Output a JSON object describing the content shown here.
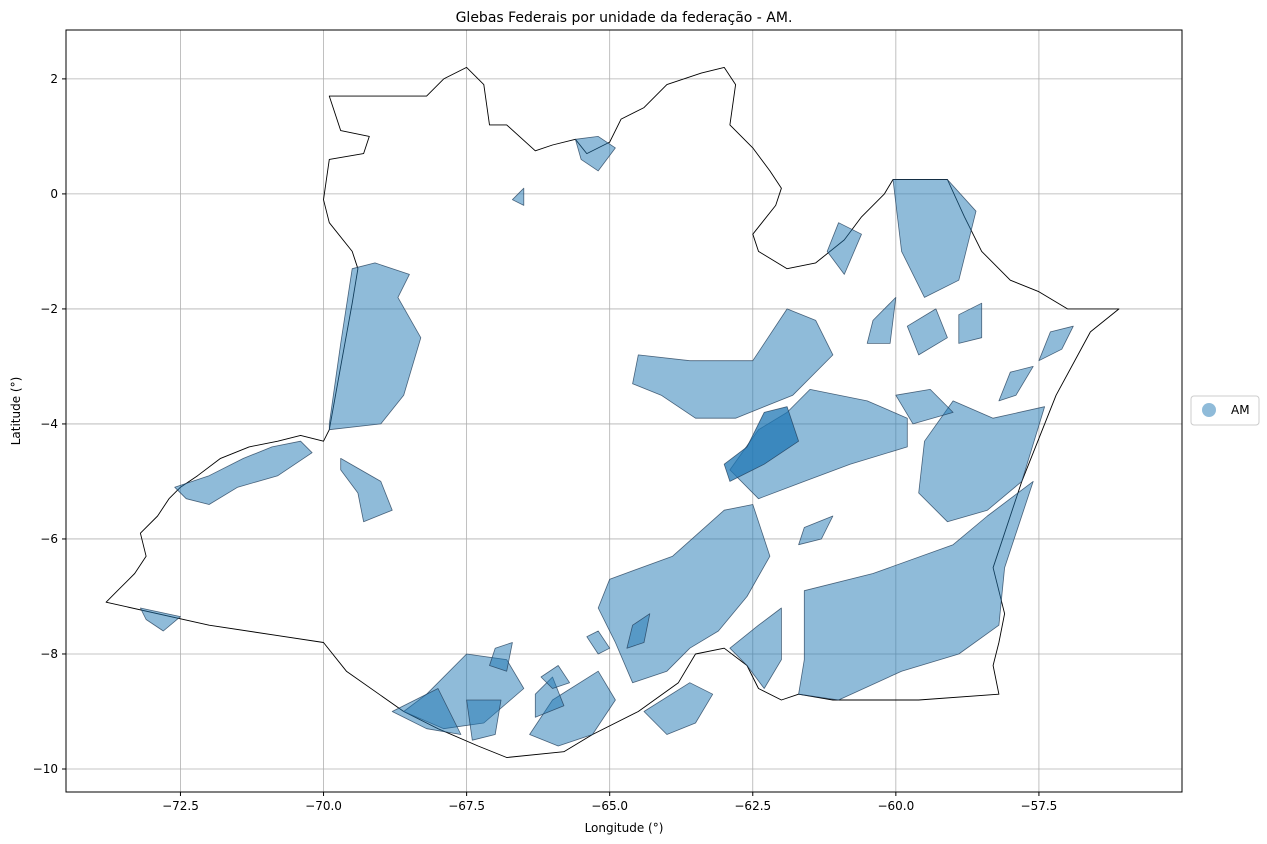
{
  "title": "Glebas Federais por unidade da federação - AM.",
  "xlabel": "Longitude (°)",
  "ylabel": "Latitude (°)",
  "chart_data": {
    "type": "map",
    "title": "Glebas Federais por unidade da federação - AM.",
    "xlabel": "Longitude (°)",
    "ylabel": "Latitude (°)",
    "xlim": [
      -74.5,
      -55.0
    ],
    "ylim": [
      -10.4,
      2.85
    ],
    "xticks": [
      -72.5,
      -70.0,
      -67.5,
      -65.0,
      -62.5,
      -60.0,
      -57.5
    ],
    "yticks": [
      2,
      0,
      -2,
      -4,
      -6,
      -8,
      -10
    ],
    "xtick_labels": [
      "−72.5",
      "−70.0",
      "−67.5",
      "−65.0",
      "−62.5",
      "−60.0",
      "−57.5"
    ],
    "ytick_labels": [
      "2",
      "0",
      "−2",
      "−4",
      "−6",
      "−8",
      "−10"
    ],
    "grid": true,
    "legend": {
      "position": "right",
      "entries": [
        {
          "label": "AM",
          "color": "#1f77b4",
          "alpha": 0.5
        }
      ]
    },
    "fill_color": "#1f77b4",
    "fill_alpha": 0.5,
    "state_outline": [
      [
        -73.8,
        -7.1
      ],
      [
        -73.6,
        -6.9
      ],
      [
        -73.3,
        -6.6
      ],
      [
        -73.1,
        -6.3
      ],
      [
        -73.2,
        -5.9
      ],
      [
        -72.9,
        -5.6
      ],
      [
        -72.7,
        -5.3
      ],
      [
        -72.5,
        -5.1
      ],
      [
        -72.2,
        -4.9
      ],
      [
        -71.8,
        -4.6
      ],
      [
        -71.3,
        -4.4
      ],
      [
        -70.8,
        -4.3
      ],
      [
        -70.4,
        -4.2
      ],
      [
        -70.0,
        -4.3
      ],
      [
        -69.9,
        -4.1
      ],
      [
        -69.7,
        -3.0
      ],
      [
        -69.5,
        -1.9
      ],
      [
        -69.4,
        -1.3
      ],
      [
        -69.5,
        -1.0
      ],
      [
        -69.9,
        -0.5
      ],
      [
        -70.0,
        -0.1
      ],
      [
        -69.9,
        0.6
      ],
      [
        -69.3,
        0.7
      ],
      [
        -69.2,
        1.0
      ],
      [
        -69.7,
        1.1
      ],
      [
        -69.9,
        1.7
      ],
      [
        -68.2,
        1.7
      ],
      [
        -67.9,
        2.0
      ],
      [
        -67.5,
        2.2
      ],
      [
        -67.2,
        1.9
      ],
      [
        -67.1,
        1.2
      ],
      [
        -66.8,
        1.2
      ],
      [
        -66.3,
        0.75
      ],
      [
        -66.0,
        0.85
      ],
      [
        -65.6,
        0.95
      ],
      [
        -65.4,
        0.7
      ],
      [
        -65.0,
        0.9
      ],
      [
        -64.8,
        1.3
      ],
      [
        -64.4,
        1.5
      ],
      [
        -64.0,
        1.9
      ],
      [
        -63.4,
        2.1
      ],
      [
        -63.0,
        2.2
      ],
      [
        -62.8,
        1.9
      ],
      [
        -62.9,
        1.2
      ],
      [
        -62.5,
        0.8
      ],
      [
        -62.2,
        0.4
      ],
      [
        -62.0,
        0.1
      ],
      [
        -62.1,
        -0.2
      ],
      [
        -62.5,
        -0.7
      ],
      [
        -62.4,
        -1.0
      ],
      [
        -61.9,
        -1.3
      ],
      [
        -61.4,
        -1.2
      ],
      [
        -60.9,
        -0.8
      ],
      [
        -60.6,
        -0.4
      ],
      [
        -60.2,
        0.0
      ],
      [
        -60.05,
        0.25
      ],
      [
        -59.1,
        0.25
      ],
      [
        -58.8,
        -0.4
      ],
      [
        -58.5,
        -1.0
      ],
      [
        -58.0,
        -1.5
      ],
      [
        -57.5,
        -1.7
      ],
      [
        -57.0,
        -2.0
      ],
      [
        -56.1,
        -2.0
      ],
      [
        -56.6,
        -2.4
      ],
      [
        -57.2,
        -3.5
      ],
      [
        -57.8,
        -5.0
      ],
      [
        -58.3,
        -6.5
      ],
      [
        -58.1,
        -7.3
      ],
      [
        -58.2,
        -7.8
      ],
      [
        -58.3,
        -8.2
      ],
      [
        -58.2,
        -8.7
      ],
      [
        -59.6,
        -8.8
      ],
      [
        -61.1,
        -8.8
      ],
      [
        -61.7,
        -8.7
      ],
      [
        -62.0,
        -8.8
      ],
      [
        -62.4,
        -8.6
      ],
      [
        -62.6,
        -8.2
      ],
      [
        -63.0,
        -7.9
      ],
      [
        -63.5,
        -8.0
      ],
      [
        -63.8,
        -8.5
      ],
      [
        -64.5,
        -9.0
      ],
      [
        -65.3,
        -9.4
      ],
      [
        -65.8,
        -9.7
      ],
      [
        -66.8,
        -9.8
      ],
      [
        -67.3,
        -9.6
      ],
      [
        -68.0,
        -9.3
      ],
      [
        -68.6,
        -9.0
      ],
      [
        -69.6,
        -8.3
      ],
      [
        -70.0,
        -7.8
      ],
      [
        -72.0,
        -7.5
      ],
      [
        -73.8,
        -7.1
      ]
    ],
    "glebas": [
      [
        [
          -69.9,
          -4.1
        ],
        [
          -69.0,
          -4.0
        ],
        [
          -68.6,
          -3.5
        ],
        [
          -68.3,
          -2.5
        ],
        [
          -68.7,
          -1.8
        ],
        [
          -68.5,
          -1.4
        ],
        [
          -69.1,
          -1.2
        ],
        [
          -69.5,
          -1.3
        ],
        [
          -69.7,
          -2.6
        ],
        [
          -69.9,
          -4.0
        ]
      ],
      [
        [
          -69.7,
          -4.6
        ],
        [
          -69.0,
          -5.0
        ],
        [
          -68.8,
          -5.5
        ],
        [
          -69.3,
          -5.7
        ],
        [
          -69.4,
          -5.2
        ],
        [
          -69.7,
          -4.8
        ]
      ],
      [
        [
          -72.6,
          -5.1
        ],
        [
          -72.0,
          -4.9
        ],
        [
          -71.4,
          -4.6
        ],
        [
          -70.9,
          -4.4
        ],
        [
          -70.4,
          -4.3
        ],
        [
          -70.2,
          -4.5
        ],
        [
          -70.8,
          -4.9
        ],
        [
          -71.5,
          -5.1
        ],
        [
          -72.0,
          -5.4
        ],
        [
          -72.4,
          -5.3
        ]
      ],
      [
        [
          -73.2,
          -7.2
        ],
        [
          -72.5,
          -7.35
        ],
        [
          -72.8,
          -7.6
        ],
        [
          -73.1,
          -7.4
        ]
      ],
      [
        [
          -65.6,
          0.95
        ],
        [
          -65.2,
          1.0
        ],
        [
          -64.9,
          0.8
        ],
        [
          -65.2,
          0.4
        ],
        [
          -65.5,
          0.6
        ]
      ],
      [
        [
          -66.7,
          -0.1
        ],
        [
          -66.5,
          -0.2
        ],
        [
          -66.5,
          0.1
        ]
      ],
      [
        [
          -59.1,
          0.25
        ],
        [
          -58.6,
          -0.3
        ],
        [
          -58.9,
          -1.5
        ],
        [
          -59.5,
          -1.8
        ],
        [
          -59.9,
          -1.0
        ],
        [
          -60.05,
          0.25
        ]
      ],
      [
        [
          -61.0,
          -0.5
        ],
        [
          -60.6,
          -0.7
        ],
        [
          -60.9,
          -1.4
        ],
        [
          -61.2,
          -1.0
        ]
      ],
      [
        [
          -59.8,
          -2.3
        ],
        [
          -59.3,
          -2.0
        ],
        [
          -59.1,
          -2.5
        ],
        [
          -59.6,
          -2.8
        ]
      ],
      [
        [
          -60.4,
          -2.2
        ],
        [
          -60.0,
          -1.8
        ],
        [
          -60.1,
          -2.6
        ],
        [
          -60.5,
          -2.6
        ]
      ],
      [
        [
          -64.5,
          -2.8
        ],
        [
          -63.6,
          -2.9
        ],
        [
          -62.5,
          -2.9
        ],
        [
          -61.9,
          -2.0
        ],
        [
          -61.4,
          -2.2
        ],
        [
          -61.1,
          -2.8
        ],
        [
          -61.8,
          -3.5
        ],
        [
          -62.8,
          -3.9
        ],
        [
          -63.5,
          -3.9
        ],
        [
          -64.1,
          -3.5
        ],
        [
          -64.6,
          -3.3
        ]
      ],
      [
        [
          -62.9,
          -4.8
        ],
        [
          -62.4,
          -4.1
        ],
        [
          -61.9,
          -3.8
        ],
        [
          -61.5,
          -3.4
        ],
        [
          -60.5,
          -3.6
        ],
        [
          -59.8,
          -3.9
        ],
        [
          -59.8,
          -4.4
        ],
        [
          -60.8,
          -4.7
        ],
        [
          -61.6,
          -5.0
        ],
        [
          -62.4,
          -5.3
        ]
      ],
      [
        [
          -59.5,
          -4.3
        ],
        [
          -59.0,
          -3.6
        ],
        [
          -58.3,
          -3.9
        ],
        [
          -57.4,
          -3.7
        ],
        [
          -57.8,
          -5.0
        ],
        [
          -58.4,
          -5.5
        ],
        [
          -59.1,
          -5.7
        ],
        [
          -59.6,
          -5.2
        ]
      ],
      [
        [
          -58.9,
          -2.1
        ],
        [
          -58.5,
          -1.9
        ],
        [
          -58.5,
          -2.5
        ],
        [
          -58.9,
          -2.6
        ]
      ],
      [
        [
          -57.3,
          -2.4
        ],
        [
          -56.9,
          -2.3
        ],
        [
          -57.1,
          -2.7
        ],
        [
          -57.5,
          -2.9
        ]
      ],
      [
        [
          -58.0,
          -3.1
        ],
        [
          -57.6,
          -3.0
        ],
        [
          -57.9,
          -3.5
        ],
        [
          -58.2,
          -3.6
        ]
      ],
      [
        [
          -60.0,
          -3.5
        ],
        [
          -59.4,
          -3.4
        ],
        [
          -59.0,
          -3.8
        ],
        [
          -59.7,
          -4.0
        ]
      ],
      [
        [
          -65.0,
          -6.7
        ],
        [
          -63.9,
          -6.3
        ],
        [
          -63.0,
          -5.5
        ],
        [
          -62.5,
          -5.4
        ],
        [
          -62.2,
          -6.3
        ],
        [
          -62.6,
          -7.0
        ],
        [
          -63.1,
          -7.6
        ],
        [
          -63.6,
          -7.9
        ],
        [
          -64.0,
          -8.3
        ],
        [
          -64.6,
          -8.5
        ],
        [
          -64.9,
          -7.8
        ],
        [
          -65.2,
          -7.2
        ]
      ],
      [
        [
          -61.6,
          -6.9
        ],
        [
          -60.4,
          -6.6
        ],
        [
          -59.0,
          -6.1
        ],
        [
          -58.4,
          -5.6
        ],
        [
          -57.6,
          -5.0
        ],
        [
          -58.1,
          -6.5
        ],
        [
          -58.2,
          -7.5
        ],
        [
          -58.9,
          -8.0
        ],
        [
          -59.9,
          -8.3
        ],
        [
          -61.0,
          -8.8
        ],
        [
          -61.7,
          -8.7
        ],
        [
          -61.6,
          -8.1
        ]
      ],
      [
        [
          -62.9,
          -7.9
        ],
        [
          -62.4,
          -7.5
        ],
        [
          -62.0,
          -7.2
        ],
        [
          -62.0,
          -8.1
        ],
        [
          -62.3,
          -8.6
        ],
        [
          -62.6,
          -8.2
        ]
      ],
      [
        [
          -64.4,
          -9.0
        ],
        [
          -63.6,
          -8.5
        ],
        [
          -63.2,
          -8.7
        ],
        [
          -63.5,
          -9.2
        ],
        [
          -64.0,
          -9.4
        ]
      ],
      [
        [
          -66.0,
          -8.8
        ],
        [
          -65.2,
          -8.3
        ],
        [
          -64.9,
          -8.8
        ],
        [
          -65.3,
          -9.4
        ],
        [
          -65.9,
          -9.6
        ],
        [
          -66.4,
          -9.4
        ]
      ],
      [
        [
          -68.2,
          -8.7
        ],
        [
          -67.5,
          -8.0
        ],
        [
          -66.8,
          -8.1
        ],
        [
          -66.5,
          -8.6
        ],
        [
          -67.2,
          -9.2
        ],
        [
          -67.9,
          -9.3
        ],
        [
          -68.6,
          -9.0
        ]
      ],
      [
        [
          -68.8,
          -9.0
        ],
        [
          -68.0,
          -8.6
        ],
        [
          -67.6,
          -9.4
        ],
        [
          -68.2,
          -9.3
        ]
      ],
      [
        [
          -67.5,
          -8.8
        ],
        [
          -66.9,
          -8.8
        ],
        [
          -67.0,
          -9.4
        ],
        [
          -67.4,
          -9.5
        ]
      ],
      [
        [
          -66.3,
          -8.7
        ],
        [
          -66.0,
          -8.4
        ],
        [
          -65.8,
          -8.9
        ],
        [
          -66.3,
          -9.1
        ]
      ],
      [
        [
          -67.0,
          -7.9
        ],
        [
          -66.7,
          -7.8
        ],
        [
          -66.8,
          -8.3
        ],
        [
          -67.1,
          -8.2
        ]
      ],
      [
        [
          -65.4,
          -7.7
        ],
        [
          -65.2,
          -7.6
        ],
        [
          -65.0,
          -7.9
        ],
        [
          -65.2,
          -8.0
        ]
      ],
      [
        [
          -64.6,
          -7.5
        ],
        [
          -64.3,
          -7.3
        ],
        [
          -64.4,
          -7.8
        ],
        [
          -64.7,
          -7.9
        ]
      ],
      [
        [
          -61.6,
          -5.8
        ],
        [
          -61.1,
          -5.6
        ],
        [
          -61.3,
          -6.0
        ],
        [
          -61.7,
          -6.1
        ]
      ],
      [
        [
          -66.2,
          -8.4
        ],
        [
          -65.9,
          -8.2
        ],
        [
          -65.7,
          -8.5
        ],
        [
          -66.0,
          -8.6
        ]
      ]
    ],
    "glebas_dark": [
      [
        [
          -62.3,
          -3.8
        ],
        [
          -61.9,
          -3.7
        ],
        [
          -61.7,
          -4.3
        ],
        [
          -62.3,
          -4.7
        ],
        [
          -62.9,
          -5.0
        ],
        [
          -63.0,
          -4.7
        ],
        [
          -62.6,
          -4.4
        ],
        [
          -62.4,
          -4.0
        ]
      ]
    ]
  }
}
